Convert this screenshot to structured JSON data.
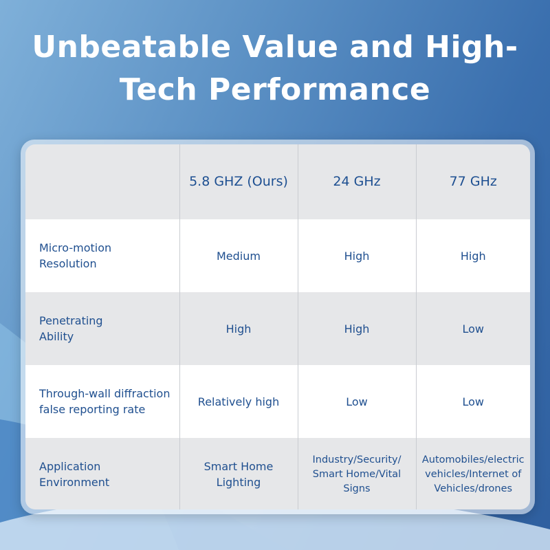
{
  "headline": {
    "line1": "Unbeatable Value and High-",
    "line2": "Tech Performance"
  },
  "table": {
    "header": [
      "",
      "5.8 GHZ (Ours)",
      "24 GHz",
      "77 GHz"
    ],
    "rows": [
      {
        "label_lines": [
          "Micro-motion",
          "Resolution"
        ],
        "cells": [
          "Medium",
          "High",
          "High"
        ]
      },
      {
        "label_lines": [
          "Penetrating",
          "Ability"
        ],
        "cells": [
          "High",
          "High",
          "Low"
        ]
      },
      {
        "label_lines": [
          "Through-wall diffraction",
          "false reporting rate"
        ],
        "cells": [
          "Relatively high",
          "Low",
          "Low"
        ]
      },
      {
        "label_lines": [
          "Application",
          "Environment"
        ],
        "cell_lines": [
          [
            "Smart Home",
            "Lighting"
          ],
          [
            "Industry/Security/",
            "Smart Home/Vital",
            "Signs"
          ],
          [
            "Automobiles/electric",
            "vehicles/Internet of",
            "Vehicles/drones"
          ]
        ]
      }
    ]
  },
  "colors": {
    "header_text": "#1d4f91",
    "body_text": "#1f4f8f",
    "row_white": "#ffffff",
    "row_grey": "#e6e7e9"
  }
}
